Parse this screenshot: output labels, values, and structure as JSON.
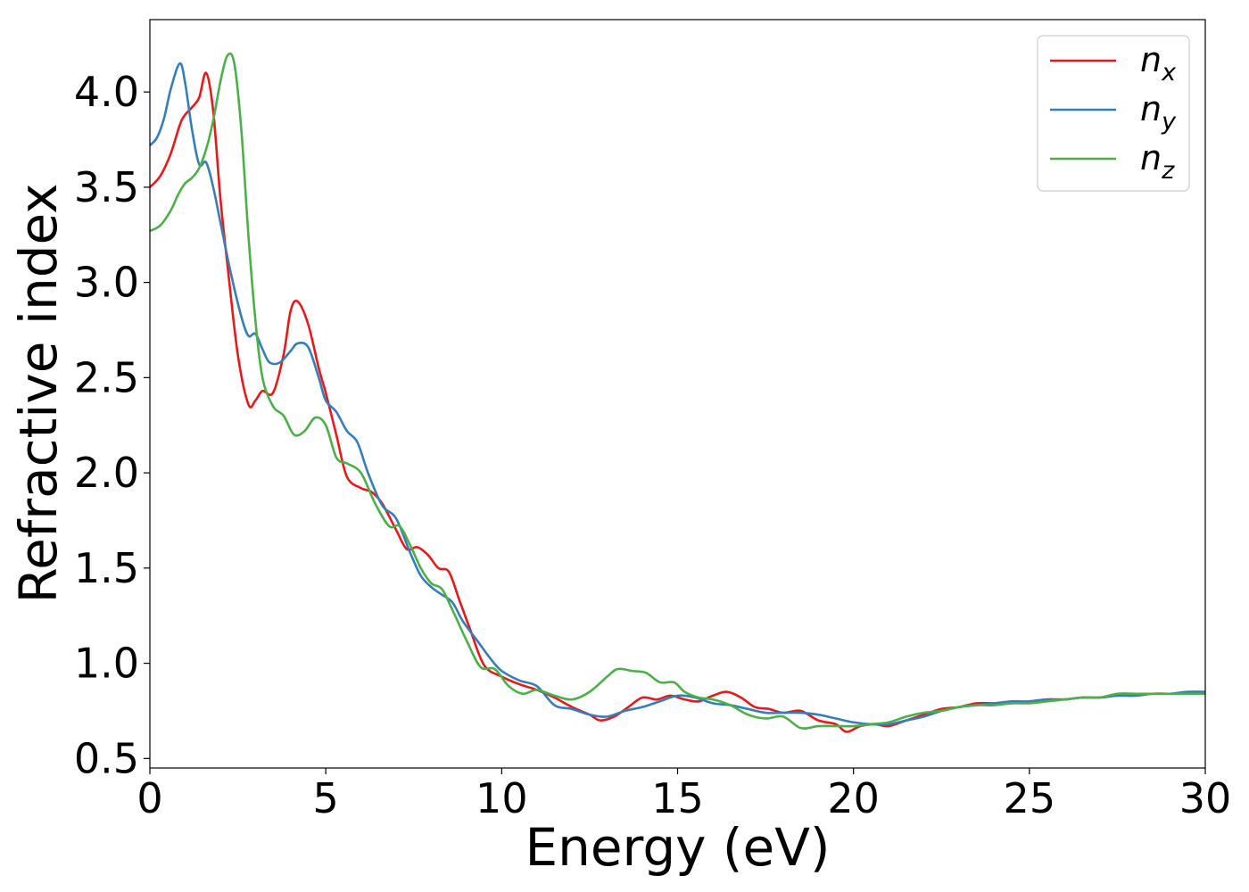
{
  "chart_data": {
    "type": "line",
    "xlabel": "Energy (eV)",
    "ylabel": "Refractive index",
    "xlim": [
      0,
      30
    ],
    "ylim": [
      0.45,
      4.38
    ],
    "xticks": [
      0,
      5,
      10,
      15,
      20,
      25,
      30
    ],
    "yticks": [
      0.5,
      1.0,
      1.5,
      2.0,
      2.5,
      3.0,
      3.5,
      4.0
    ],
    "xtick_labels": [
      "0",
      "5",
      "10",
      "15",
      "20",
      "25",
      "30"
    ],
    "ytick_labels": [
      "0.5",
      "1.0",
      "1.5",
      "2.0",
      "2.5",
      "3.0",
      "3.5",
      "4.0"
    ],
    "grid": false,
    "legend_position": "top-right",
    "series": [
      {
        "name": "n_x",
        "label_base": "n",
        "label_sub": "x",
        "color": "#e41a1c",
        "x": [
          0,
          0.3,
          0.6,
          0.9,
          1.2,
          1.4,
          1.6,
          1.8,
          2.0,
          2.2,
          2.5,
          2.8,
          3.0,
          3.2,
          3.5,
          3.8,
          4.0,
          4.2,
          4.5,
          4.8,
          5.0,
          5.3,
          5.6,
          6.0,
          6.3,
          6.6,
          7.0,
          7.3,
          7.6,
          7.9,
          8.2,
          8.5,
          8.8,
          9.1,
          9.5,
          10.0,
          10.5,
          11.0,
          11.5,
          12.0,
          12.5,
          12.8,
          13.2,
          13.6,
          14.0,
          14.4,
          14.8,
          15.2,
          15.6,
          16.0,
          16.4,
          16.8,
          17.2,
          17.6,
          18.0,
          18.5,
          19.0,
          19.5,
          19.8,
          20.2,
          20.6,
          21.0,
          21.5,
          22.0,
          22.5,
          23.0,
          23.5,
          24.0,
          24.5,
          25.0,
          25.5,
          26.0,
          26.5,
          27.0,
          27.5,
          28.0,
          28.5,
          29.0,
          29.5,
          30.0
        ],
        "values": [
          3.5,
          3.56,
          3.68,
          3.85,
          3.92,
          3.97,
          4.1,
          3.9,
          3.45,
          3.1,
          2.62,
          2.36,
          2.38,
          2.43,
          2.42,
          2.62,
          2.85,
          2.9,
          2.78,
          2.55,
          2.42,
          2.2,
          1.98,
          1.92,
          1.9,
          1.84,
          1.7,
          1.6,
          1.61,
          1.57,
          1.5,
          1.48,
          1.33,
          1.18,
          0.99,
          0.93,
          0.89,
          0.86,
          0.82,
          0.77,
          0.73,
          0.7,
          0.72,
          0.77,
          0.82,
          0.81,
          0.83,
          0.81,
          0.8,
          0.83,
          0.85,
          0.82,
          0.77,
          0.76,
          0.74,
          0.75,
          0.7,
          0.68,
          0.64,
          0.67,
          0.68,
          0.67,
          0.7,
          0.73,
          0.76,
          0.77,
          0.79,
          0.79,
          0.79,
          0.8,
          0.81,
          0.81,
          0.82,
          0.82,
          0.83,
          0.83,
          0.84,
          0.84,
          0.84,
          0.84
        ]
      },
      {
        "name": "n_y",
        "label_base": "n",
        "label_sub": "y",
        "color": "#377eb8",
        "x": [
          0,
          0.2,
          0.4,
          0.6,
          0.85,
          1.0,
          1.2,
          1.4,
          1.6,
          1.8,
          2.0,
          2.3,
          2.6,
          2.8,
          3.0,
          3.2,
          3.4,
          3.7,
          4.0,
          4.2,
          4.5,
          4.8,
          5.0,
          5.3,
          5.6,
          5.9,
          6.2,
          6.6,
          7.0,
          7.4,
          7.7,
          8.0,
          8.3,
          8.6,
          8.9,
          9.3,
          9.7,
          10.0,
          10.5,
          11.0,
          11.5,
          12.0,
          12.5,
          13.0,
          13.5,
          14.0,
          14.5,
          15.0,
          15.5,
          16.0,
          16.5,
          17.0,
          17.5,
          18.0,
          18.5,
          19.0,
          19.5,
          20.0,
          20.5,
          21.0,
          21.5,
          22.0,
          22.5,
          23.0,
          23.5,
          24.0,
          24.5,
          25.0,
          25.5,
          26.0,
          26.5,
          27.0,
          27.5,
          28.0,
          28.5,
          29.0,
          29.5,
          30.0
        ],
        "values": [
          3.72,
          3.76,
          3.86,
          4.02,
          4.15,
          4.05,
          3.8,
          3.62,
          3.63,
          3.5,
          3.32,
          3.05,
          2.82,
          2.72,
          2.73,
          2.65,
          2.58,
          2.58,
          2.64,
          2.68,
          2.66,
          2.5,
          2.38,
          2.32,
          2.22,
          2.16,
          2.0,
          1.83,
          1.76,
          1.58,
          1.46,
          1.4,
          1.36,
          1.32,
          1.22,
          1.12,
          1.02,
          0.96,
          0.91,
          0.88,
          0.78,
          0.76,
          0.73,
          0.72,
          0.75,
          0.77,
          0.8,
          0.83,
          0.82,
          0.79,
          0.78,
          0.76,
          0.74,
          0.74,
          0.74,
          0.73,
          0.71,
          0.69,
          0.68,
          0.68,
          0.7,
          0.72,
          0.75,
          0.77,
          0.78,
          0.79,
          0.8,
          0.8,
          0.81,
          0.81,
          0.82,
          0.82,
          0.83,
          0.83,
          0.84,
          0.84,
          0.85,
          0.85
        ]
      },
      {
        "name": "n_z",
        "label_base": "n",
        "label_sub": "z",
        "color": "#4daf4a",
        "x": [
          0,
          0.3,
          0.6,
          0.8,
          1.0,
          1.2,
          1.4,
          1.6,
          1.8,
          2.0,
          2.2,
          2.4,
          2.6,
          2.8,
          3.0,
          3.2,
          3.5,
          3.8,
          4.1,
          4.4,
          4.7,
          5.0,
          5.3,
          5.6,
          6.0,
          6.4,
          6.8,
          7.1,
          7.4,
          7.7,
          8.0,
          8.3,
          8.6,
          9.0,
          9.4,
          9.8,
          10.2,
          10.6,
          11.0,
          11.5,
          12.0,
          12.5,
          13.0,
          13.3,
          13.7,
          14.1,
          14.5,
          14.9,
          15.2,
          15.6,
          16.0,
          16.5,
          17.0,
          17.5,
          18.0,
          18.5,
          19.0,
          19.5,
          20.0,
          20.5,
          21.0,
          21.5,
          22.0,
          22.5,
          23.0,
          23.5,
          24.0,
          24.5,
          25.0,
          25.5,
          26.0,
          26.5,
          27.0,
          27.5,
          28.0,
          28.5,
          29.0,
          29.5,
          30.0
        ],
        "values": [
          3.27,
          3.3,
          3.38,
          3.46,
          3.52,
          3.55,
          3.6,
          3.7,
          3.85,
          4.05,
          4.19,
          4.15,
          3.8,
          3.25,
          2.8,
          2.5,
          2.35,
          2.3,
          2.2,
          2.22,
          2.29,
          2.25,
          2.08,
          2.05,
          2.0,
          1.84,
          1.72,
          1.72,
          1.62,
          1.5,
          1.42,
          1.39,
          1.28,
          1.12,
          0.98,
          0.97,
          0.88,
          0.84,
          0.86,
          0.83,
          0.81,
          0.85,
          0.93,
          0.97,
          0.96,
          0.95,
          0.9,
          0.9,
          0.85,
          0.82,
          0.81,
          0.78,
          0.73,
          0.71,
          0.72,
          0.66,
          0.67,
          0.67,
          0.67,
          0.68,
          0.69,
          0.72,
          0.74,
          0.75,
          0.77,
          0.78,
          0.78,
          0.79,
          0.79,
          0.8,
          0.81,
          0.82,
          0.82,
          0.84,
          0.84,
          0.84,
          0.84,
          0.84,
          0.84
        ]
      }
    ]
  }
}
